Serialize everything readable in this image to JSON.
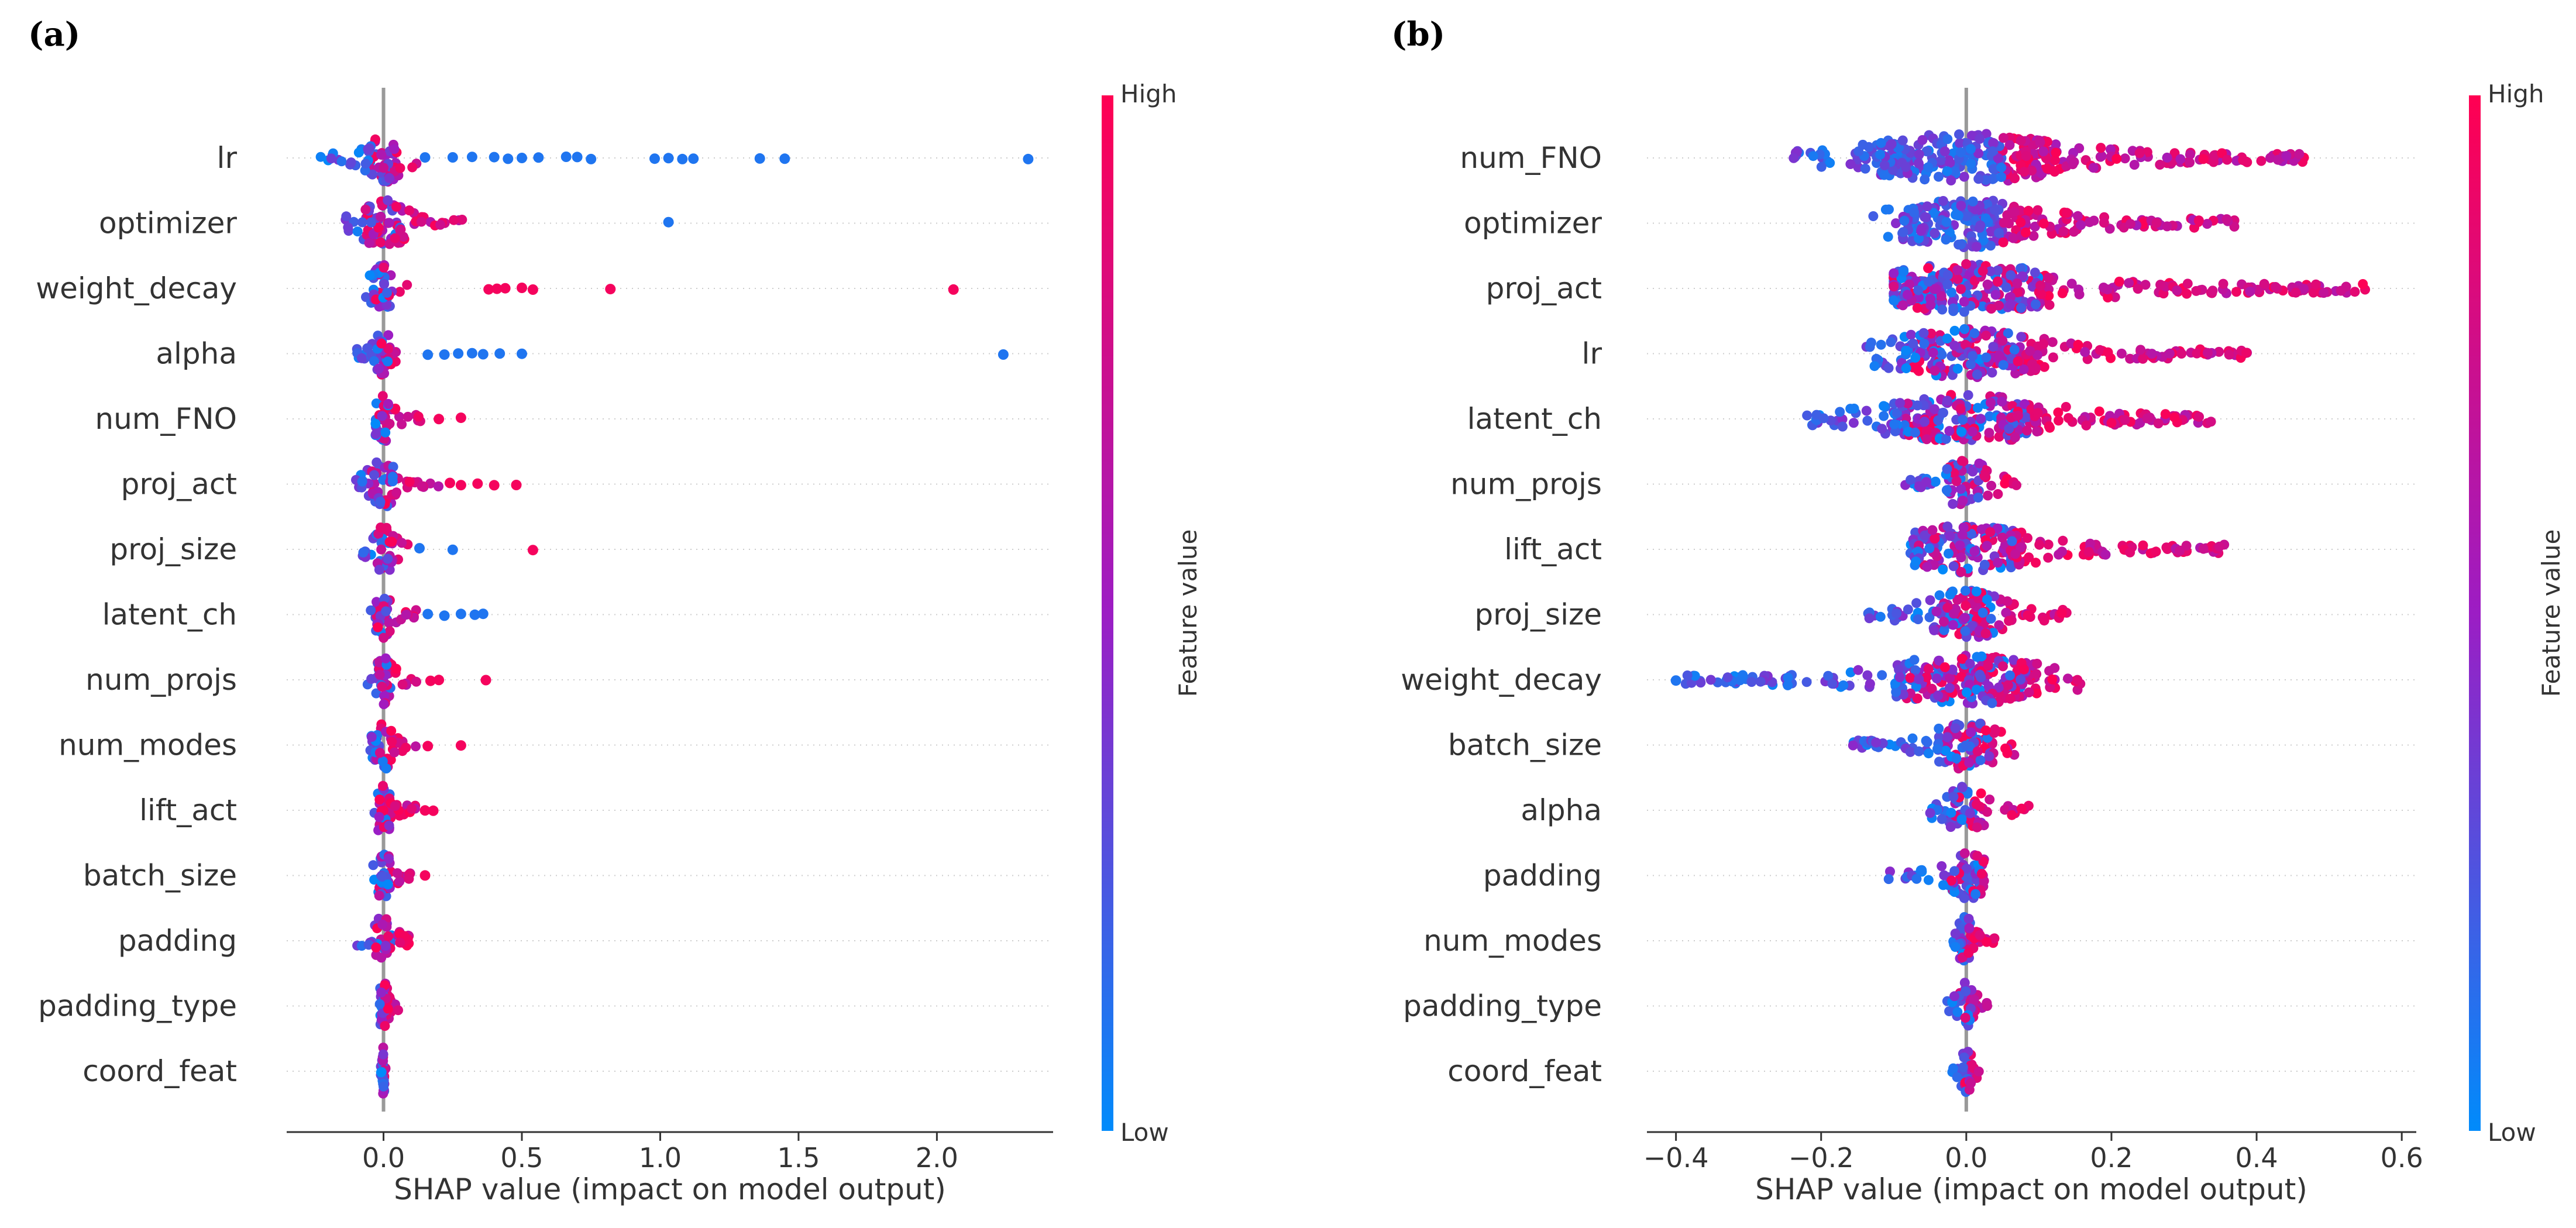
{
  "figure": {
    "panels": [
      "(a)",
      "(b)"
    ],
    "colorbar": {
      "high": "High",
      "low": "Low",
      "label": "Feature value"
    },
    "colors": {
      "low": "#008bfb",
      "mid": "#9c1dc4",
      "high": "#ff0052",
      "zero_line": "#999999",
      "grid": "#cccccc",
      "axis": "#333333"
    }
  },
  "chart_data": [
    {
      "type": "scatter",
      "subtype": "shap_beeswarm",
      "panel": "(a)",
      "title": "",
      "xlabel": "SHAP value (impact on model output)",
      "ylabel": "",
      "xlim": [
        -0.35,
        2.42
      ],
      "xticks": [
        0.0,
        0.5,
        1.0,
        1.5,
        2.0
      ],
      "xtick_labels": [
        "0.0",
        "0.5",
        "1.0",
        "1.5",
        "2.0"
      ],
      "features": [
        {
          "name": "lr",
          "min": -0.23,
          "max": 0.12,
          "outliers": [
            [
              0.15,
              0.1
            ],
            [
              0.25,
              0.1
            ],
            [
              0.32,
              0.1
            ],
            [
              0.4,
              0.1
            ],
            [
              0.45,
              0.1
            ],
            [
              0.5,
              0.1
            ],
            [
              0.56,
              0.1
            ],
            [
              0.66,
              0.1
            ],
            [
              0.7,
              0.1
            ],
            [
              0.75,
              0.1
            ],
            [
              0.98,
              0.1
            ],
            [
              1.03,
              0.1
            ],
            [
              1.08,
              0.1
            ],
            [
              1.12,
              0.1
            ],
            [
              1.36,
              0.1
            ],
            [
              1.45,
              0.1
            ],
            [
              2.33,
              0.1
            ]
          ]
        },
        {
          "name": "optimizer",
          "min": -0.14,
          "max": 0.3,
          "outliers": [
            [
              1.03,
              0.1
            ]
          ]
        },
        {
          "name": "weight_decay",
          "min": -0.1,
          "max": 0.12,
          "outliers": [
            [
              0.38,
              0.95
            ],
            [
              0.41,
              0.95
            ],
            [
              0.44,
              0.95
            ],
            [
              0.5,
              0.95
            ],
            [
              0.54,
              0.95
            ],
            [
              0.82,
              0.95
            ],
            [
              2.06,
              0.95
            ]
          ]
        },
        {
          "name": "alpha",
          "min": -0.1,
          "max": 0.05,
          "outliers": [
            [
              0.16,
              0.1
            ],
            [
              0.22,
              0.1
            ],
            [
              0.27,
              0.1
            ],
            [
              0.32,
              0.1
            ],
            [
              0.36,
              0.1
            ],
            [
              0.42,
              0.1
            ],
            [
              0.5,
              0.1
            ],
            [
              2.24,
              0.1
            ]
          ]
        },
        {
          "name": "num_FNO",
          "min": -0.03,
          "max": 0.14,
          "outliers": [
            [
              0.2,
              0.95
            ],
            [
              0.28,
              0.95
            ]
          ]
        },
        {
          "name": "proj_act",
          "min": -0.1,
          "max": 0.2,
          "outliers": [
            [
              0.24,
              0.95
            ],
            [
              0.28,
              0.95
            ],
            [
              0.34,
              0.95
            ],
            [
              0.4,
              0.95
            ],
            [
              0.48,
              0.95
            ]
          ]
        },
        {
          "name": "proj_size",
          "min": -0.1,
          "max": 0.1,
          "outliers": [
            [
              0.13,
              0.1
            ],
            [
              0.25,
              0.1
            ],
            [
              0.54,
              0.95
            ]
          ]
        },
        {
          "name": "latent_ch",
          "min": -0.05,
          "max": 0.12,
          "outliers": [
            [
              0.16,
              0.1
            ],
            [
              0.22,
              0.1
            ],
            [
              0.28,
              0.1
            ],
            [
              0.33,
              0.1
            ],
            [
              0.36,
              0.1
            ]
          ]
        },
        {
          "name": "num_projs",
          "min": -0.06,
          "max": 0.12,
          "outliers": [
            [
              0.17,
              0.95
            ],
            [
              0.2,
              0.95
            ],
            [
              0.37,
              0.95
            ]
          ]
        },
        {
          "name": "num_modes",
          "min": -0.05,
          "max": 0.12,
          "outliers": [
            [
              0.16,
              0.95
            ],
            [
              0.28,
              0.95
            ]
          ]
        },
        {
          "name": "lift_act",
          "min": -0.04,
          "max": 0.12,
          "outliers": [
            [
              0.15,
              0.95
            ],
            [
              0.18,
              0.95
            ]
          ]
        },
        {
          "name": "batch_size",
          "min": -0.06,
          "max": 0.1,
          "outliers": [
            [
              0.15,
              0.95
            ]
          ]
        },
        {
          "name": "padding",
          "min": -0.1,
          "max": 0.1,
          "outliers": []
        },
        {
          "name": "padding_type",
          "min": -0.02,
          "max": 0.06,
          "outliers": []
        },
        {
          "name": "coord_feat",
          "min": -0.01,
          "max": 0.01,
          "outliers": []
        }
      ]
    },
    {
      "type": "scatter",
      "subtype": "shap_beeswarm",
      "panel": "(b)",
      "title": "",
      "xlabel": "SHAP value (impact on model output)",
      "ylabel": "",
      "xlim": [
        -0.44,
        0.62
      ],
      "xticks": [
        -0.4,
        -0.2,
        0.0,
        0.2,
        0.4,
        0.6
      ],
      "xtick_labels": [
        "−0.4",
        "−0.2",
        "0.0",
        "0.2",
        "0.4",
        "0.6"
      ],
      "features": [
        {
          "name": "num_FNO",
          "min": -0.24,
          "max": 0.47,
          "outliers": []
        },
        {
          "name": "optimizer",
          "min": -0.13,
          "max": 0.37,
          "outliers": []
        },
        {
          "name": "proj_act",
          "min": -0.1,
          "max": 0.57,
          "outliers": []
        },
        {
          "name": "lr",
          "min": -0.14,
          "max": 0.39,
          "outliers": []
        },
        {
          "name": "latent_ch",
          "min": -0.22,
          "max": 0.35,
          "outliers": []
        },
        {
          "name": "num_projs",
          "min": -0.09,
          "max": 0.07,
          "outliers": []
        },
        {
          "name": "lift_act",
          "min": -0.08,
          "max": 0.36,
          "outliers": []
        },
        {
          "name": "proj_size",
          "min": -0.14,
          "max": 0.14,
          "outliers": []
        },
        {
          "name": "weight_decay",
          "min": -0.4,
          "max": 0.16,
          "outliers": [
            [
              -0.4,
              0.1
            ]
          ]
        },
        {
          "name": "batch_size",
          "min": -0.16,
          "max": 0.07,
          "outliers": []
        },
        {
          "name": "alpha",
          "min": -0.05,
          "max": 0.09,
          "outliers": []
        },
        {
          "name": "padding",
          "min": -0.11,
          "max": 0.03,
          "outliers": []
        },
        {
          "name": "num_modes",
          "min": -0.02,
          "max": 0.04,
          "outliers": []
        },
        {
          "name": "padding_type",
          "min": -0.03,
          "max": 0.03,
          "outliers": []
        },
        {
          "name": "coord_feat",
          "min": -0.02,
          "max": 0.02,
          "outliers": []
        }
      ]
    }
  ]
}
